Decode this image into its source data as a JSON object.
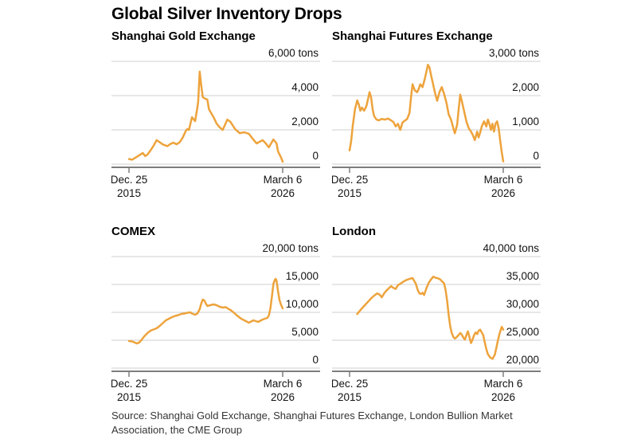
{
  "page": {
    "title": "Global Silver Inventory Drops",
    "source": {
      "line1": "Source: Shanghai Gold Exchange, Shanghai Futures Exchange, London Bullion Market",
      "line2": "Association, the CME Group"
    }
  },
  "colors": {
    "line": "#EDA33C",
    "grid": "#CFCFCF",
    "axis": "#7D7D7D",
    "text": "#121212"
  },
  "chart_data": [
    {
      "type": "line",
      "title": "Shanghai Gold Exchange",
      "unit": "tons",
      "ymin": 0,
      "ymax": 6000,
      "grid": true,
      "legend": "none",
      "yticks": [
        {
          "value": 6000,
          "label": "6,000 tons"
        },
        {
          "value": 4000,
          "label": "4,000"
        },
        {
          "value": 2000,
          "label": "2,000"
        },
        {
          "value": 0,
          "label": "0"
        }
      ],
      "xticks": [
        {
          "pos": 0,
          "label": "Dec. 25",
          "sub": "2015"
        },
        {
          "pos": 1,
          "label": "March 6",
          "sub": "2026"
        }
      ],
      "points": [
        [
          0,
          300
        ],
        [
          0.02,
          260
        ],
        [
          0.035,
          340
        ],
        [
          0.05,
          420
        ],
        [
          0.07,
          540
        ],
        [
          0.09,
          650
        ],
        [
          0.105,
          470
        ],
        [
          0.12,
          560
        ],
        [
          0.14,
          800
        ],
        [
          0.16,
          1080
        ],
        [
          0.18,
          1400
        ],
        [
          0.2,
          1280
        ],
        [
          0.22,
          1150
        ],
        [
          0.25,
          1050
        ],
        [
          0.27,
          1180
        ],
        [
          0.29,
          1250
        ],
        [
          0.31,
          1160
        ],
        [
          0.33,
          1280
        ],
        [
          0.35,
          1550
        ],
        [
          0.37,
          1950
        ],
        [
          0.38,
          2050
        ],
        [
          0.39,
          2000
        ],
        [
          0.41,
          2740
        ],
        [
          0.43,
          2510
        ],
        [
          0.445,
          3300
        ],
        [
          0.45,
          3670
        ],
        [
          0.46,
          5400
        ],
        [
          0.47,
          4600
        ],
        [
          0.48,
          3910
        ],
        [
          0.5,
          3800
        ],
        [
          0.51,
          3770
        ],
        [
          0.52,
          3210
        ],
        [
          0.55,
          2740
        ],
        [
          0.57,
          2370
        ],
        [
          0.59,
          2150
        ],
        [
          0.61,
          2000
        ],
        [
          0.64,
          2600
        ],
        [
          0.66,
          2470
        ],
        [
          0.69,
          2050
        ],
        [
          0.72,
          1810
        ],
        [
          0.75,
          1860
        ],
        [
          0.78,
          1770
        ],
        [
          0.8,
          1540
        ],
        [
          0.83,
          1210
        ],
        [
          0.85,
          1300
        ],
        [
          0.87,
          1400
        ],
        [
          0.89,
          1210
        ],
        [
          0.91,
          980
        ],
        [
          0.94,
          1440
        ],
        [
          0.96,
          1210
        ],
        [
          0.97,
          740
        ],
        [
          0.99,
          370
        ],
        [
          1,
          140
        ]
      ]
    },
    {
      "type": "line",
      "title": "Shanghai Futures Exchange",
      "unit": "tons",
      "ymin": 0,
      "ymax": 3000,
      "grid": true,
      "legend": "none",
      "yticks": [
        {
          "value": 3000,
          "label": "3,000 tons"
        },
        {
          "value": 2000,
          "label": "2,000"
        },
        {
          "value": 1000,
          "label": "1,000"
        },
        {
          "value": 0,
          "label": "0"
        }
      ],
      "xticks": [
        {
          "pos": 0,
          "label": "Dec. 25",
          "sub": "2015"
        },
        {
          "pos": 1,
          "label": "March 6",
          "sub": "2026"
        }
      ],
      "points": [
        [
          0,
          400
        ],
        [
          0.01,
          650
        ],
        [
          0.02,
          1100
        ],
        [
          0.035,
          1600
        ],
        [
          0.05,
          1860
        ],
        [
          0.06,
          1740
        ],
        [
          0.07,
          1560
        ],
        [
          0.08,
          1650
        ],
        [
          0.095,
          1560
        ],
        [
          0.11,
          1700
        ],
        [
          0.12,
          1900
        ],
        [
          0.13,
          2100
        ],
        [
          0.14,
          1950
        ],
        [
          0.15,
          1600
        ],
        [
          0.16,
          1400
        ],
        [
          0.175,
          1300
        ],
        [
          0.19,
          1280
        ],
        [
          0.21,
          1320
        ],
        [
          0.23,
          1300
        ],
        [
          0.25,
          1330
        ],
        [
          0.27,
          1280
        ],
        [
          0.285,
          1230
        ],
        [
          0.3,
          1100
        ],
        [
          0.315,
          1180
        ],
        [
          0.33,
          1000
        ],
        [
          0.345,
          1220
        ],
        [
          0.36,
          1270
        ],
        [
          0.375,
          1320
        ],
        [
          0.39,
          1500
        ],
        [
          0.4,
          1950
        ],
        [
          0.41,
          2330
        ],
        [
          0.425,
          2150
        ],
        [
          0.44,
          2100
        ],
        [
          0.45,
          2200
        ],
        [
          0.46,
          2330
        ],
        [
          0.475,
          2250
        ],
        [
          0.49,
          2500
        ],
        [
          0.5,
          2700
        ],
        [
          0.51,
          2900
        ],
        [
          0.52,
          2820
        ],
        [
          0.53,
          2600
        ],
        [
          0.545,
          2300
        ],
        [
          0.555,
          2100
        ],
        [
          0.57,
          1850
        ],
        [
          0.585,
          2100
        ],
        [
          0.6,
          2250
        ],
        [
          0.615,
          2050
        ],
        [
          0.63,
          1800
        ],
        [
          0.645,
          1450
        ],
        [
          0.66,
          1300
        ],
        [
          0.675,
          1050
        ],
        [
          0.685,
          900
        ],
        [
          0.7,
          1150
        ],
        [
          0.71,
          1600
        ],
        [
          0.72,
          2030
        ],
        [
          0.73,
          1850
        ],
        [
          0.745,
          1550
        ],
        [
          0.76,
          1250
        ],
        [
          0.775,
          1050
        ],
        [
          0.79,
          950
        ],
        [
          0.8,
          870
        ],
        [
          0.815,
          700
        ],
        [
          0.83,
          950
        ],
        [
          0.84,
          780
        ],
        [
          0.85,
          920
        ],
        [
          0.86,
          1100
        ],
        [
          0.875,
          1250
        ],
        [
          0.89,
          1100
        ],
        [
          0.9,
          1300
        ],
        [
          0.91,
          1180
        ],
        [
          0.92,
          1000
        ],
        [
          0.93,
          1180
        ],
        [
          0.94,
          950
        ],
        [
          0.95,
          1180
        ],
        [
          0.96,
          1250
        ],
        [
          0.97,
          1050
        ],
        [
          0.98,
          700
        ],
        [
          0.99,
          350
        ],
        [
          1,
          80
        ]
      ]
    },
    {
      "type": "line",
      "title": "COMEX",
      "unit": "tons",
      "ymin": 0,
      "ymax": 20000,
      "grid": true,
      "legend": "none",
      "yticks": [
        {
          "value": 20000,
          "label": "20,000 tons"
        },
        {
          "value": 15000,
          "label": "15,000"
        },
        {
          "value": 10000,
          "label": "10,000"
        },
        {
          "value": 5000,
          "label": "5,000"
        },
        {
          "value": 0,
          "label": "0"
        }
      ],
      "xticks": [
        {
          "pos": 0,
          "label": "Dec. 25",
          "sub": "2015"
        },
        {
          "pos": 1,
          "label": "March 6",
          "sub": "2026"
        }
      ],
      "points": [
        [
          0,
          4860
        ],
        [
          0.02,
          4780
        ],
        [
          0.04,
          4560
        ],
        [
          0.05,
          4430
        ],
        [
          0.065,
          4560
        ],
        [
          0.08,
          5000
        ],
        [
          0.1,
          5710
        ],
        [
          0.12,
          6290
        ],
        [
          0.14,
          6710
        ],
        [
          0.16,
          6930
        ],
        [
          0.18,
          7140
        ],
        [
          0.2,
          7570
        ],
        [
          0.22,
          8070
        ],
        [
          0.24,
          8570
        ],
        [
          0.26,
          8860
        ],
        [
          0.28,
          9140
        ],
        [
          0.3,
          9360
        ],
        [
          0.32,
          9500
        ],
        [
          0.34,
          9710
        ],
        [
          0.36,
          9790
        ],
        [
          0.38,
          9930
        ],
        [
          0.4,
          10000
        ],
        [
          0.41,
          9790
        ],
        [
          0.43,
          9570
        ],
        [
          0.445,
          9790
        ],
        [
          0.46,
          10570
        ],
        [
          0.47,
          11570
        ],
        [
          0.48,
          12280
        ],
        [
          0.49,
          12140
        ],
        [
          0.5,
          11570
        ],
        [
          0.51,
          11140
        ],
        [
          0.53,
          11290
        ],
        [
          0.55,
          11430
        ],
        [
          0.57,
          11290
        ],
        [
          0.59,
          11000
        ],
        [
          0.61,
          10860
        ],
        [
          0.63,
          10930
        ],
        [
          0.65,
          10570
        ],
        [
          0.66,
          10430
        ],
        [
          0.68,
          10000
        ],
        [
          0.7,
          9500
        ],
        [
          0.71,
          9290
        ],
        [
          0.73,
          8860
        ],
        [
          0.75,
          8570
        ],
        [
          0.77,
          8290
        ],
        [
          0.78,
          8140
        ],
        [
          0.795,
          8360
        ],
        [
          0.81,
          8570
        ],
        [
          0.825,
          8430
        ],
        [
          0.84,
          8290
        ],
        [
          0.855,
          8500
        ],
        [
          0.87,
          8710
        ],
        [
          0.885,
          8860
        ],
        [
          0.9,
          9000
        ],
        [
          0.91,
          9430
        ],
        [
          0.92,
          10710
        ],
        [
          0.93,
          12860
        ],
        [
          0.94,
          15140
        ],
        [
          0.95,
          15860
        ],
        [
          0.955,
          16000
        ],
        [
          0.96,
          15710
        ],
        [
          0.97,
          13710
        ],
        [
          0.98,
          12140
        ],
        [
          0.99,
          11290
        ],
        [
          1,
          10710
        ]
      ]
    },
    {
      "type": "line",
      "title": "London",
      "unit": "tons",
      "ymin": 20000,
      "ymax": 40000,
      "grid": true,
      "legend": "none",
      "yticks": [
        {
          "value": 40000,
          "label": "40,000 tons"
        },
        {
          "value": 35000,
          "label": "35,000"
        },
        {
          "value": 30000,
          "label": "30,000"
        },
        {
          "value": 25000,
          "label": "25,000"
        },
        {
          "value": 20000,
          "label": "20,000"
        }
      ],
      "xticks": [
        {
          "pos": 0,
          "label": "Dec. 25",
          "sub": "2015"
        },
        {
          "pos": 1,
          "label": "March 6",
          "sub": "2026"
        }
      ],
      "points": [
        [
          0.05,
          29700
        ],
        [
          0.065,
          30200
        ],
        [
          0.08,
          30700
        ],
        [
          0.1,
          31300
        ],
        [
          0.12,
          31900
        ],
        [
          0.14,
          32500
        ],
        [
          0.16,
          33000
        ],
        [
          0.18,
          33400
        ],
        [
          0.195,
          33200
        ],
        [
          0.21,
          32700
        ],
        [
          0.225,
          33400
        ],
        [
          0.24,
          33900
        ],
        [
          0.255,
          34300
        ],
        [
          0.27,
          34700
        ],
        [
          0.285,
          34400
        ],
        [
          0.3,
          34200
        ],
        [
          0.315,
          34900
        ],
        [
          0.33,
          35100
        ],
        [
          0.35,
          35500
        ],
        [
          0.37,
          35800
        ],
        [
          0.39,
          36000
        ],
        [
          0.41,
          36150
        ],
        [
          0.43,
          35200
        ],
        [
          0.445,
          33900
        ],
        [
          0.455,
          33400
        ],
        [
          0.465,
          33300
        ],
        [
          0.475,
          33500
        ],
        [
          0.485,
          33100
        ],
        [
          0.5,
          34300
        ],
        [
          0.515,
          35300
        ],
        [
          0.53,
          35900
        ],
        [
          0.545,
          36400
        ],
        [
          0.56,
          36200
        ],
        [
          0.575,
          36100
        ],
        [
          0.59,
          35900
        ],
        [
          0.6,
          35600
        ],
        [
          0.615,
          35200
        ],
        [
          0.625,
          34000
        ],
        [
          0.635,
          32000
        ],
        [
          0.645,
          29500
        ],
        [
          0.655,
          27500
        ],
        [
          0.665,
          26300
        ],
        [
          0.675,
          25600
        ],
        [
          0.685,
          25300
        ],
        [
          0.695,
          25500
        ],
        [
          0.705,
          25800
        ],
        [
          0.72,
          26300
        ],
        [
          0.73,
          26000
        ],
        [
          0.74,
          25500
        ],
        [
          0.75,
          25100
        ],
        [
          0.76,
          25900
        ],
        [
          0.77,
          26600
        ],
        [
          0.78,
          25600
        ],
        [
          0.79,
          24500
        ],
        [
          0.8,
          25100
        ],
        [
          0.81,
          25900
        ],
        [
          0.82,
          26400
        ],
        [
          0.83,
          26100
        ],
        [
          0.84,
          26700
        ],
        [
          0.85,
          26900
        ],
        [
          0.86,
          26400
        ],
        [
          0.87,
          25900
        ],
        [
          0.88,
          24600
        ],
        [
          0.89,
          23400
        ],
        [
          0.9,
          22500
        ],
        [
          0.915,
          21900
        ],
        [
          0.93,
          21650
        ],
        [
          0.945,
          22400
        ],
        [
          0.955,
          23600
        ],
        [
          0.965,
          24900
        ],
        [
          0.975,
          26100
        ],
        [
          0.99,
          27400
        ],
        [
          1,
          26900
        ]
      ]
    }
  ]
}
